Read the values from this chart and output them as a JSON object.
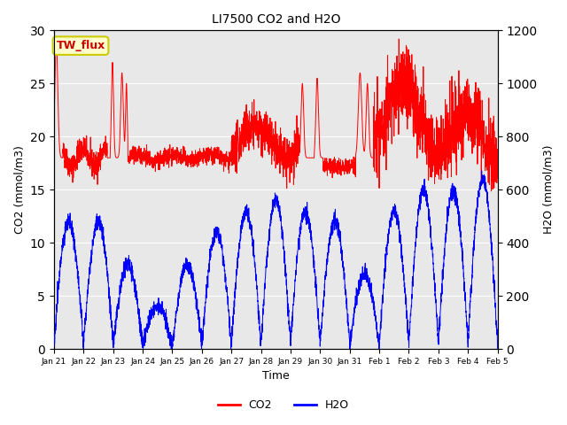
{
  "title": "LI7500 CO2 and H2O",
  "xlabel": "Time",
  "ylabel_left": "CO2 (mmol/m3)",
  "ylabel_right": "H2O (mmol/m3)",
  "ylim_left": [
    0,
    30
  ],
  "ylim_right": [
    0,
    1200
  ],
  "yticks_left": [
    0,
    5,
    10,
    15,
    20,
    25,
    30
  ],
  "yticks_right": [
    0,
    200,
    400,
    600,
    800,
    1000,
    1200
  ],
  "bg_color": "#e8e8e8",
  "co2_color": "#ff0000",
  "h2o_color": "#0000ff",
  "legend_label_co2": "CO2",
  "legend_label_h2o": "H2O",
  "text_label": "TW_flux",
  "n_points": 3360,
  "tick_labels": [
    "Jan 21",
    "Jan 22",
    "Jan 23",
    "Jan 24",
    "Jan 25",
    "Jan 26",
    "Jan 27",
    "Jan 28",
    "Jan 29",
    "Jan 30",
    "Jan 31",
    "Feb 1",
    "Feb 2",
    "Feb 3",
    "Feb 4",
    "Feb 5"
  ]
}
